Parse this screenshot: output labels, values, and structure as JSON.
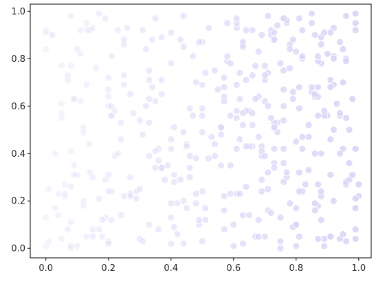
{
  "chart_data": {
    "type": "scatter",
    "title": "",
    "xlabel": "",
    "ylabel": "",
    "xlim": [
      -0.05,
      1.04
    ],
    "ylim": [
      -0.04,
      1.03
    ],
    "x_ticks": [
      0.0,
      0.2,
      0.4,
      0.6,
      0.8,
      1.0
    ],
    "x_tick_labels": [
      "0.0",
      "0.2",
      "0.4",
      "0.6",
      "0.8",
      "1.0"
    ],
    "y_ticks": [
      0.0,
      0.2,
      0.4,
      0.6,
      0.8,
      1.0
    ],
    "y_tick_labels": [
      "0.0",
      "0.2",
      "0.4",
      "0.6",
      "0.8",
      "1.0"
    ],
    "grid": false,
    "legend": "none",
    "marker_color": "#d8d4f6",
    "color_encoding": "point opacity increases with x",
    "point_count": 400,
    "sample_points": [
      [
        0.01,
        0.03
      ],
      [
        0.02,
        0.9
      ],
      [
        0.03,
        0.4
      ],
      [
        0.05,
        0.55
      ],
      [
        0.06,
        0.22
      ],
      [
        0.07,
        0.71
      ],
      [
        0.08,
        0.98
      ],
      [
        0.09,
        0.35
      ],
      [
        0.1,
        0.01
      ],
      [
        0.11,
        0.62
      ],
      [
        0.12,
        0.18
      ],
      [
        0.13,
        0.92
      ],
      [
        0.14,
        0.44
      ],
      [
        0.16,
        0.76
      ],
      [
        0.17,
        0.99
      ],
      [
        0.18,
        0.05
      ],
      [
        0.19,
        0.29
      ],
      [
        0.2,
        0.6
      ],
      [
        0.21,
        0.81
      ],
      [
        0.22,
        0.39
      ],
      [
        0.24,
        0.14
      ],
      [
        0.25,
        0.69
      ],
      [
        0.26,
        0.93
      ],
      [
        0.27,
        0.23
      ],
      [
        0.28,
        0.57
      ],
      [
        0.3,
        0.04
      ],
      [
        0.31,
        0.48
      ],
      [
        0.32,
        0.84
      ],
      [
        0.33,
        0.1
      ],
      [
        0.35,
        0.97
      ],
      [
        0.36,
        0.37
      ],
      [
        0.37,
        0.65
      ],
      [
        0.38,
        0.29
      ],
      [
        0.4,
        0.78
      ],
      [
        0.41,
        0.51
      ],
      [
        0.42,
        0.06
      ],
      [
        0.43,
        0.88
      ],
      [
        0.44,
        0.98
      ],
      [
        0.45,
        0.44
      ],
      [
        0.46,
        0.34
      ],
      [
        0.48,
        0.7
      ],
      [
        0.49,
        0.1
      ],
      [
        0.5,
        0.59
      ],
      [
        0.51,
        0.74
      ],
      [
        0.52,
        0.93
      ],
      [
        0.53,
        0.47
      ],
      [
        0.55,
        0.67
      ],
      [
        0.56,
        0.35
      ],
      [
        0.57,
        0.08
      ],
      [
        0.58,
        0.79
      ],
      [
        0.59,
        0.56
      ],
      [
        0.6,
        0.01
      ],
      [
        0.61,
        0.93
      ],
      [
        0.62,
        0.46
      ],
      [
        0.63,
        0.86
      ],
      [
        0.64,
        0.26
      ],
      [
        0.65,
        0.58
      ],
      [
        0.66,
        0.73
      ],
      [
        0.67,
        0.05
      ],
      [
        0.68,
        0.83
      ],
      [
        0.69,
        0.39
      ],
      [
        0.7,
        0.62
      ],
      [
        0.71,
        0.16
      ],
      [
        0.72,
        0.92
      ],
      [
        0.73,
        0.36
      ],
      [
        0.74,
        0.53
      ],
      [
        0.75,
        0.0
      ],
      [
        0.76,
        0.67
      ],
      [
        0.77,
        0.3
      ],
      [
        0.78,
        0.86
      ],
      [
        0.79,
        0.63
      ],
      [
        0.8,
        0.45
      ],
      [
        0.81,
        0.05
      ],
      [
        0.82,
        0.8
      ],
      [
        0.83,
        0.27
      ],
      [
        0.84,
        0.52
      ],
      [
        0.85,
        0.95
      ],
      [
        0.86,
        0.4
      ],
      [
        0.87,
        0.18
      ],
      [
        0.88,
        0.78
      ],
      [
        0.89,
        0.01
      ],
      [
        0.9,
        0.56
      ],
      [
        0.91,
        0.31
      ],
      [
        0.92,
        0.93
      ],
      [
        0.93,
        0.61
      ],
      [
        0.94,
        0.04
      ],
      [
        0.95,
        0.84
      ],
      [
        0.96,
        0.27
      ],
      [
        0.97,
        0.5
      ],
      [
        0.98,
        0.63
      ],
      [
        0.99,
        0.17
      ],
      [
        1.0,
        0.27
      ],
      [
        0.99,
        0.92
      ],
      [
        0.97,
        0.36
      ],
      [
        0.95,
        0.42
      ],
      [
        0.91,
        0.71
      ],
      [
        0.88,
        0.22
      ],
      [
        0.84,
        0.47
      ],
      [
        0.79,
        0.09
      ],
      [
        0.76,
        0.97
      ]
    ]
  }
}
